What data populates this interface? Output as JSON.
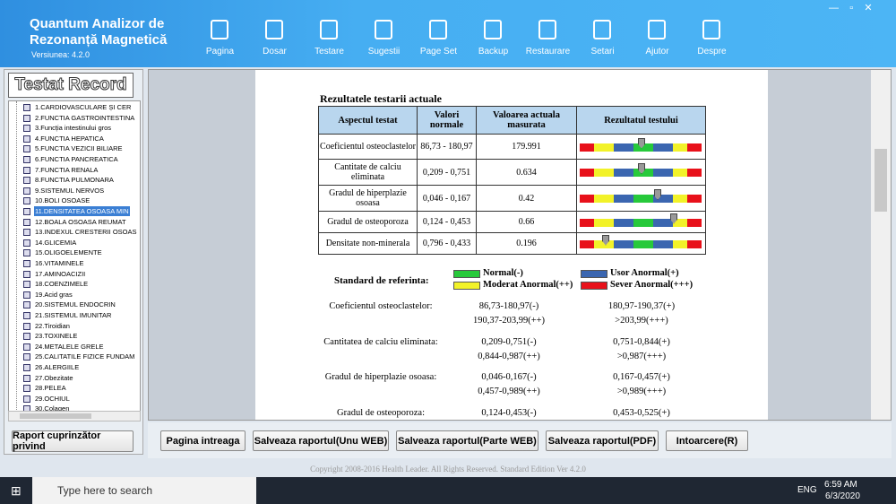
{
  "app": {
    "title_line1": "Quantum Analizor de",
    "title_line2": "Rezonanță Magnetică",
    "version": "Versiunea: 4.2.0"
  },
  "toolbar": [
    "Pagina",
    "Dosar",
    "Testare",
    "Sugestii",
    "Page Set",
    "Backup",
    "Restaurare",
    "Setari",
    "Ajutor",
    "Despre"
  ],
  "sidebar": {
    "title": "Testat Record",
    "items": [
      "1.CARDIOVASCULARE ȘI CER",
      "2.FUNCTIA GASTROINTESTINA",
      "3.Funcția intestinului gros",
      "4.FUNCTIA HEPATICA",
      "5.FUNCTIA VEZICII BILIARE",
      "6.FUNCTIA PANCREATICA",
      "7.FUNCTIA RENALA",
      "8.FUNCTIA PULMONARA",
      "9.SISTEMUL NERVOS",
      "10.BOLI OSOASE",
      "11.DENSITATEA OSOASA MIN",
      "12.BOALA OSOASA REUMAT",
      "13.INDEXUL CRESTERII OSOAS",
      "14.GLICEMIA",
      "15.OLIGOELEMENTE",
      "16.VITAMINELE",
      "17.AMINOACIZII",
      "18.COENZIMELE",
      "19.Acid gras",
      "20.SISTEMUL ENDOCRIN",
      "21.SISTEMUL IMUNITAR",
      "22.Tiroidian",
      "23.TOXINELE",
      "24.METALELE GRELE",
      "25.CALITATILE FIZICE FUNDAM",
      "26.ALERGIILE",
      "27.Obezitate",
      "28.PELEA",
      "29.OCHIUL",
      "30.Colagen"
    ],
    "button": "Raport cuprinzător privind"
  },
  "report": {
    "heading": "Rezultatele testarii actuale",
    "table": {
      "headers": [
        "Aspectul testat",
        "Valori normale",
        "Valoarea actuala masurata",
        "Rezultatul testului"
      ],
      "rows": [
        [
          "Coeficientul osteoclastelor",
          "86,73 - 180,97",
          "179.991"
        ],
        [
          "Cantitate de calciu eliminata",
          "0,209 - 0,751",
          "0.634"
        ],
        [
          "Gradul de hiperplazie osoasa",
          "0,046 - 0,167",
          "0.42"
        ],
        [
          "Gradul de osteoporoza",
          "0,124 - 0,453",
          "0.66"
        ],
        [
          "Densitate non-minerala",
          "0,796 - 0,433",
          "0.196"
        ]
      ]
    },
    "legend": {
      "title": "Standard de referinta:",
      "items": [
        "Normal(-)",
        "Usor Anormal(+)",
        "Moderat Anormal(++)",
        "Sever Anormal(+++)"
      ]
    },
    "reference": [
      {
        "label": "Coeficientul osteoclastelor:",
        "ranges": [
          "86,73-180,97(-)",
          "180,97-190,37(+)",
          "190,37-203,99(++)",
          ">203,99(+++)"
        ]
      },
      {
        "label": "Cantitatea de calciu eliminata:",
        "ranges": [
          "0,209-0,751(-)",
          "0,751-0,844(+)",
          "0,844-0,987(++)",
          ">0,987(+++)"
        ]
      },
      {
        "label": "Gradul de hiperplazie osoasa:",
        "ranges": [
          "0,046-0,167(-)",
          "0,167-0,457(+)",
          "0,457-0,989(++)",
          ">0,989(+++)"
        ]
      },
      {
        "label": "Gradul de osteoporoza:",
        "ranges": [
          "0,124-0,453(-)",
          "0,453-0,525(+)"
        ]
      }
    ]
  },
  "buttons": [
    "Pagina intreaga",
    "Salveaza raportul(Unu WEB)",
    "Salveaza raportul(Parte WEB)",
    "Salveaza raportul(PDF)",
    "Intoarcere(R)"
  ],
  "footer": "Copyright 2008-2016 Health Leader. All Rights Reserved.  Standard Edition Ver 4.2.0",
  "taskbar": {
    "search": "Type here to search",
    "lang": "ENG",
    "time": "6:59 AM",
    "date": "6/3/2020"
  }
}
